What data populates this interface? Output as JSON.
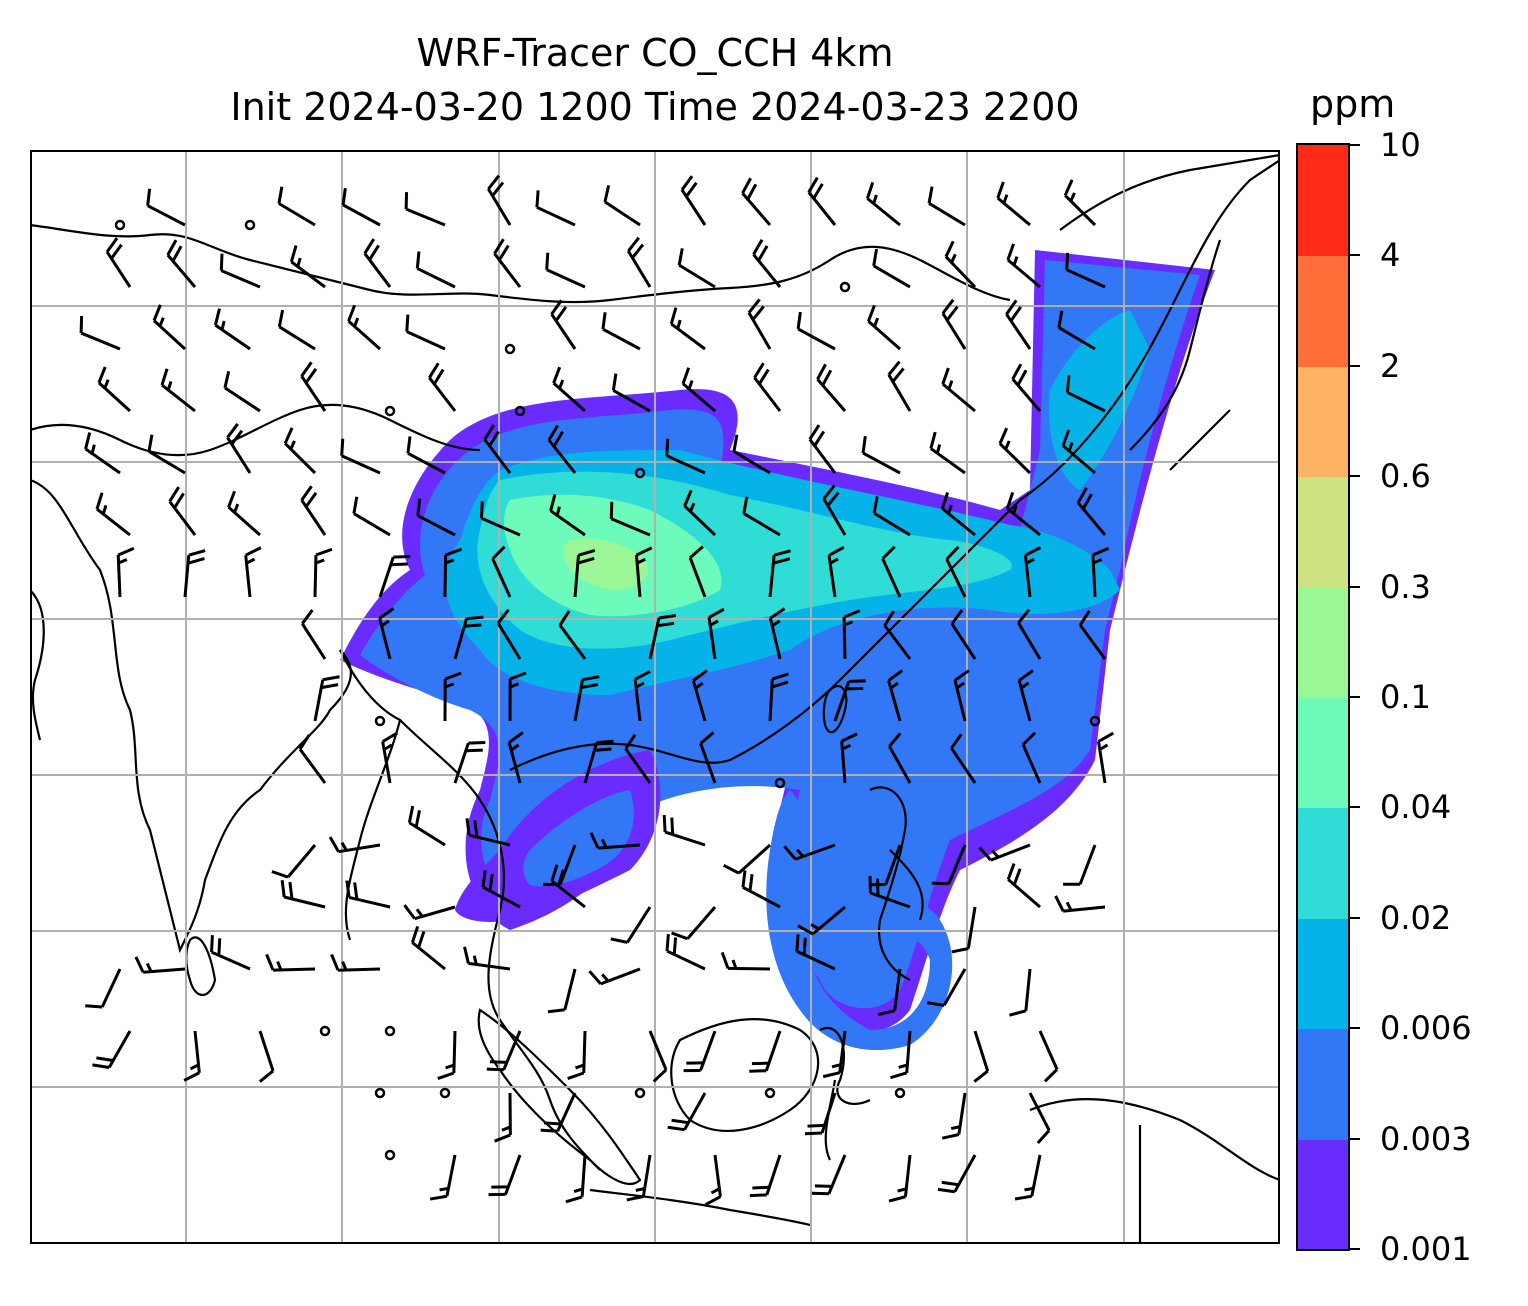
{
  "title": {
    "line1": "WRF-Tracer CO_CCH 4km",
    "line2": "Init 2024-03-20 1200 Time 2024-03-23 2200"
  },
  "colorbar": {
    "unit": "ppm",
    "levels": [
      "0.001",
      "0.003",
      "0.006",
      "0.02",
      "0.04",
      "0.1",
      "0.3",
      "0.6",
      "2",
      "4",
      "10"
    ],
    "colors": [
      "#6a2bff",
      "#3277f5",
      "#06b3e8",
      "#2fdcd6",
      "#6cfbbb",
      "#9bf696",
      "#cfe283",
      "#fdb264",
      "#fe6f3a",
      "#ff2a18"
    ]
  },
  "map": {
    "style": {
      "gridline_color": "#b0b0b0",
      "coastline_color": "#000000",
      "wind_barb_color": "#000000",
      "frame_color": "#000000"
    },
    "gridlines": "on",
    "overlays": [
      "CO tracer concentration",
      "coastlines",
      "wind barbs"
    ]
  }
}
